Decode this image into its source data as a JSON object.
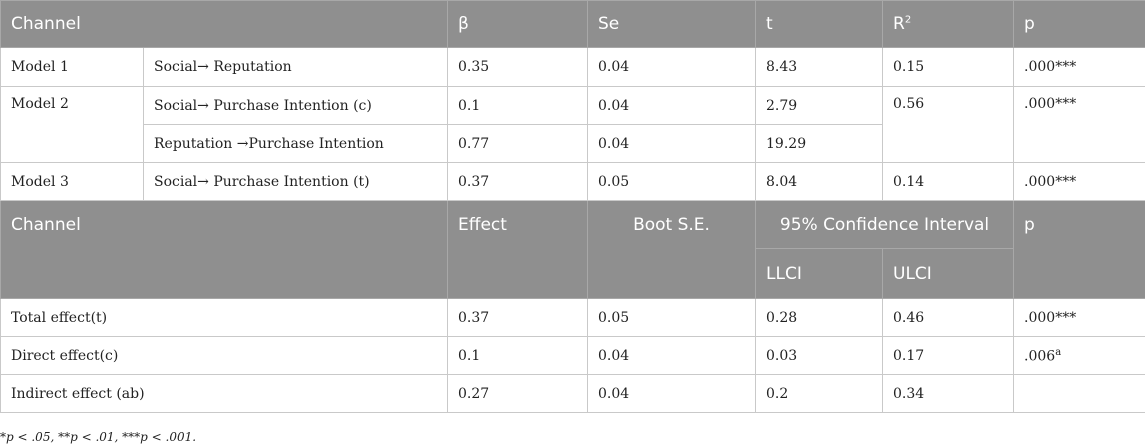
{
  "table1": {
    "headers": [
      "Channel",
      "β",
      "Se",
      "t",
      "R",
      "p"
    ],
    "r2_superscript": "2",
    "rows": {
      "model1": {
        "model": "Model 1",
        "path": "Social→ Reputation",
        "beta": "0.35",
        "se": "0.04",
        "t": "8.43",
        "r2": "0.15",
        "p": ".000***"
      },
      "model2a": {
        "model": "Model 2",
        "path": "Social→ Purchase Intention (c)",
        "beta": "0.1",
        "se": "0.04",
        "t": "2.79",
        "r2": "0.56",
        "p": ".000***"
      },
      "model2b": {
        "path": "Reputation →Purchase Intention",
        "beta": "0.77",
        "se": "0.04",
        "t": "19.29"
      },
      "model3": {
        "model": "Model 3",
        "path": "Social→ Purchase Intention (t)",
        "beta": "0.37",
        "se": "0.05",
        "t": "8.04",
        "r2": "0.14",
        "p": ".000***"
      }
    }
  },
  "table2": {
    "headers": {
      "channel": "Channel",
      "effect": "Effect",
      "boot_se": "Boot S.E.",
      "ci": "95% Confidence Interval",
      "p": "p",
      "llci": "LLCI",
      "ulci": "ULCI"
    },
    "rows": {
      "total": {
        "label": "Total effect(t)",
        "effect": "0.37",
        "se": "0.05",
        "llci": "0.28",
        "ulci": "0.46",
        "p": ".000***"
      },
      "direct": {
        "label": "Direct effect(c)",
        "effect": "0.1",
        "se": "0.04",
        "llci": "0.03",
        "ulci": "0.17",
        "p": ".006",
        "p_sup": "a"
      },
      "indirect": {
        "label": "Indirect effect (ab)",
        "effect": "0.27",
        "se": "0.04",
        "llci": "0.2",
        "ulci": "0.34",
        "p": ""
      }
    }
  },
  "footnote": "*p < .05, **p < .01, ***p < .001."
}
